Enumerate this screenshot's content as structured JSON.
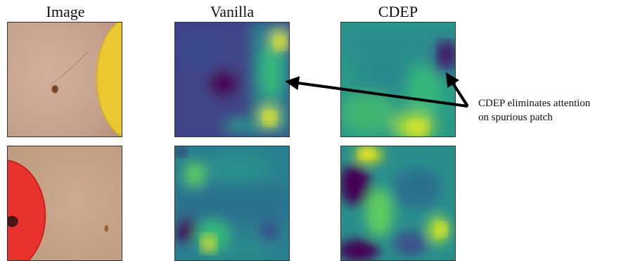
{
  "columns": {
    "image": "Image",
    "vanilla": "Vanilla",
    "cdep": "CDEP"
  },
  "annotation": {
    "line1": "CDEP eliminates attention",
    "line2": "on spurious patch"
  },
  "colors": {
    "skin_top": "#c9a693",
    "skin_bottom": "#c4a287",
    "yellow_patch": "#e9c831",
    "red_patch": "#e8322e",
    "viridis_dark": "#440154",
    "viridis_blue": "#3b528b",
    "viridis_teal": "#21918c",
    "viridis_green": "#5ec962",
    "viridis_yellow": "#fde725",
    "arrow": "#000000"
  },
  "icons": {
    "arrow_to_vanilla": "arrow-left-icon",
    "arrow_to_cdep": "arrow-up-left-icon"
  }
}
